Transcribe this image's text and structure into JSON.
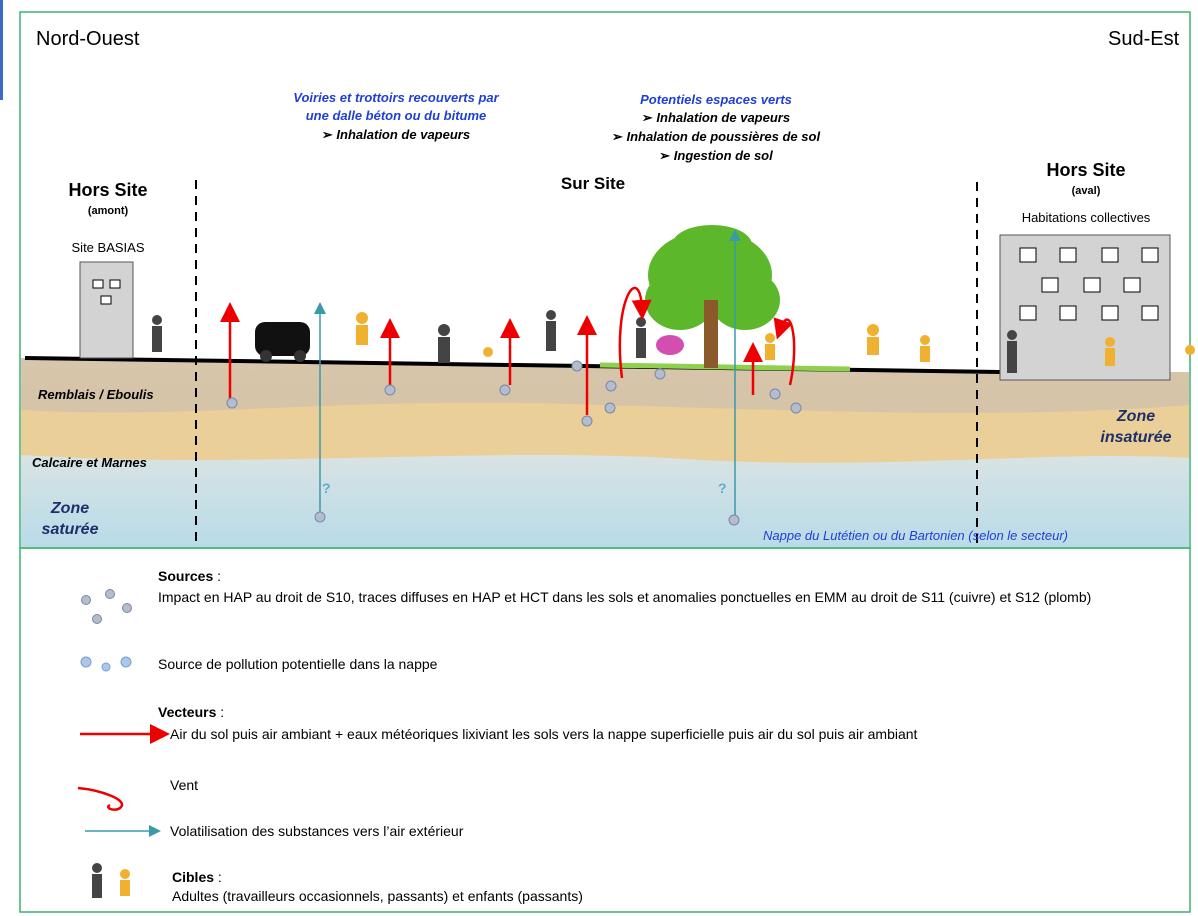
{
  "diagram": {
    "orientation": {
      "left": "Nord-Ouest",
      "right": "Sud-Est"
    },
    "zones": {
      "roads": {
        "title_lines": [
          "Voiries et trottoirs recouverts par",
          "une dalle béton ou du bitume"
        ],
        "items": [
          "Inhalation de vapeurs"
        ]
      },
      "green": {
        "title": "Potentiels espaces verts",
        "items": [
          "Inhalation de vapeurs",
          "Inhalation de poussières de sol",
          "Ingestion de sol"
        ]
      },
      "on_site": "Sur Site",
      "upstream": {
        "title": "Hors Site",
        "subtitle": "(amont)",
        "label": "Site BASIAS"
      },
      "downstream": {
        "title": "Hors Site",
        "subtitle": "(aval)",
        "label": "Habitations collectives"
      }
    },
    "layers": {
      "fill": "Remblais / Eboulis",
      "limestone": "Calcaire et Marnes",
      "saturated": [
        "Zone",
        "saturée"
      ],
      "unsaturated": [
        "Zone",
        "insaturée"
      ],
      "aquifer": "Nappe du Lutétien ou du Bartonien (selon le secteur)",
      "unknown": "?"
    }
  },
  "legend": {
    "sources": {
      "heading": "Sources",
      "suffix": " :",
      "soil": "Impact en HAP au droit de S10, traces diffuses en HAP et HCT dans les sols et anomalies ponctuelles en EMM au droit de S11 (cuivre) et S12 (plomb)",
      "water": "Source de pollution potentielle dans la nappe"
    },
    "vectors": {
      "heading": "Vecteurs",
      "suffix": " :",
      "air": "Air du sol puis air ambiant + eaux météoriques lixiviant les sols vers la nappe superficielle puis air du sol puis air ambiant",
      "wind": "Vent",
      "volatilisation": "Volatilisation des substances vers l’air extérieur"
    },
    "targets": {
      "heading": "Cibles",
      "suffix": " :",
      "text": "Adultes (travailleurs occasionnels, passants)  et enfants (passants)"
    }
  }
}
